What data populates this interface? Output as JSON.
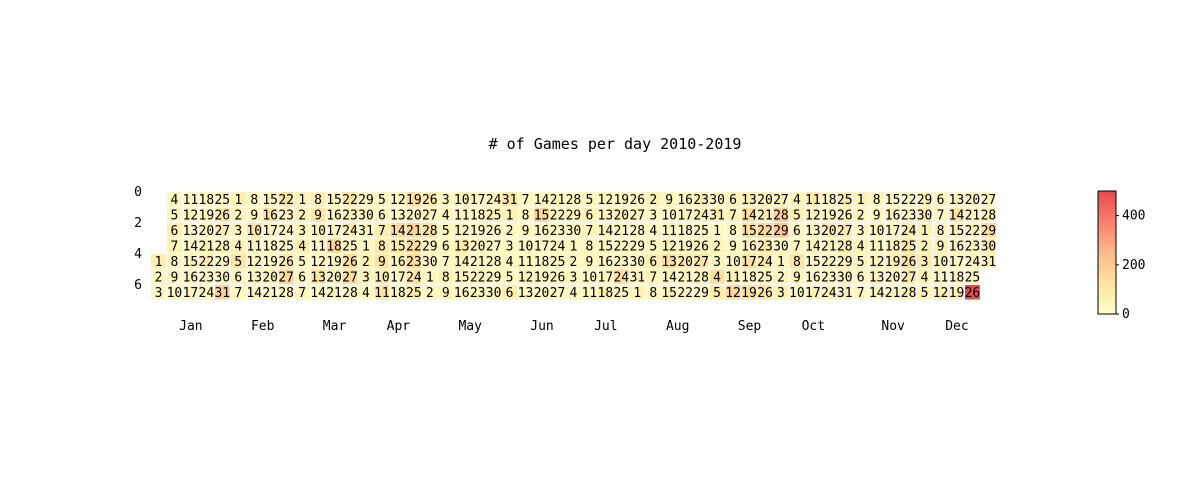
{
  "chart_data": {
    "type": "heatmap",
    "title": "# of Games per day 2010-2019",
    "xlabel": "",
    "ylabel": "",
    "year_start_weekday": 4,
    "days_per_month": [
      31,
      28,
      31,
      30,
      31,
      30,
      31,
      31,
      30,
      31,
      30,
      31
    ],
    "month_labels": [
      "Jan",
      "Feb",
      "Mar",
      "Apr",
      "May",
      "Jun",
      "Jul",
      "Aug",
      "Sep",
      "Oct",
      "Nov",
      "Dec"
    ],
    "y_ticks": [
      "0",
      "2",
      "4",
      "6"
    ],
    "colorbar": {
      "ticks": [
        "0",
        "200",
        "400"
      ],
      "min": 0,
      "max": 500,
      "colors": [
        "#ffffcc",
        "#fde3a0",
        "#fcb98a",
        "#f8806e",
        "#e74a4c"
      ]
    },
    "grid": false,
    "values_note": "",
    "daily_values": [
      80,
      40,
      35,
      30,
      40,
      70,
      60,
      40,
      35,
      30,
      45,
      40,
      30,
      30,
      45,
      35,
      40,
      30,
      35,
      45,
      60,
      70,
      35,
      40,
      45,
      110,
      70,
      50,
      30,
      40,
      180,
      70,
      50,
      40,
      60,
      120,
      40,
      35,
      30,
      45,
      110,
      50,
      35,
      40,
      35,
      45,
      120,
      40,
      35,
      30,
      60,
      40,
      130,
      45,
      35,
      40,
      90,
      160,
      35,
      50,
      60,
      60,
      80,
      35,
      30,
      45,
      80,
      110,
      50,
      40,
      40,
      110,
      30,
      30,
      35,
      35,
      160,
      40,
      45,
      35,
      110,
      60,
      70,
      40,
      140,
      150,
      40,
      35,
      60,
      30,
      40,
      50,
      50,
      35,
      45,
      40,
      80,
      90,
      110,
      80,
      120,
      40,
      35,
      140,
      100,
      50,
      35,
      40,
      140,
      40,
      160,
      140,
      150,
      110,
      80,
      100,
      50,
      130,
      30,
      40,
      35,
      35,
      35,
      40,
      30,
      35,
      35,
      60,
      60,
      60,
      40,
      60,
      90,
      60,
      40,
      35,
      40,
      30,
      35,
      30,
      30,
      60,
      35,
      45,
      60,
      35,
      35,
      40,
      40,
      40,
      120,
      50,
      30,
      35,
      30,
      30,
      80,
      35,
      30,
      30,
      30,
      30,
      50,
      30,
      30,
      160,
      40,
      30,
      35,
      40,
      40,
      35,
      30,
      35,
      30,
      40,
      45,
      30,
      35,
      60,
      30,
      35,
      30,
      30,
      30,
      40,
      50,
      40,
      35,
      30,
      35,
      30,
      30,
      40,
      50,
      40,
      30,
      35,
      70,
      35,
      60,
      30,
      35,
      40,
      140,
      35,
      35,
      45,
      40,
      30,
      40,
      40,
      50,
      60,
      30,
      30,
      40,
      80,
      50,
      30,
      40,
      30,
      40,
      60,
      140,
      50,
      60,
      40,
      40,
      30,
      35,
      90,
      40,
      35,
      80,
      60,
      35,
      60,
      110,
      60,
      40,
      40,
      70,
      30,
      60,
      40,
      140,
      90,
      60,
      50,
      30,
      30,
      45,
      70,
      160,
      70,
      140,
      140,
      50,
      130,
      40,
      130,
      70,
      70,
      160,
      90,
      100,
      35,
      110,
      60,
      190,
      220,
      30,
      40,
      50,
      60,
      50,
      70,
      40,
      40,
      110,
      40,
      40,
      100,
      40,
      40,
      50,
      30,
      40,
      60,
      40,
      40,
      100,
      40,
      50,
      40,
      50,
      100,
      70,
      90,
      90,
      70,
      70,
      60,
      60,
      40,
      40,
      60,
      50,
      35,
      35,
      40,
      30,
      50,
      35,
      50,
      60,
      35,
      40,
      60,
      30,
      60,
      70,
      40,
      35,
      35,
      30,
      80,
      120,
      130,
      90,
      50,
      60,
      90,
      60,
      60,
      90,
      60,
      60,
      50,
      40,
      40,
      60,
      60,
      40,
      60,
      40,
      120,
      60,
      40,
      50,
      40,
      60,
      50,
      40,
      60,
      40,
      60,
      40,
      500,
      35,
      60,
      140,
      90,
      45
    ]
  }
}
